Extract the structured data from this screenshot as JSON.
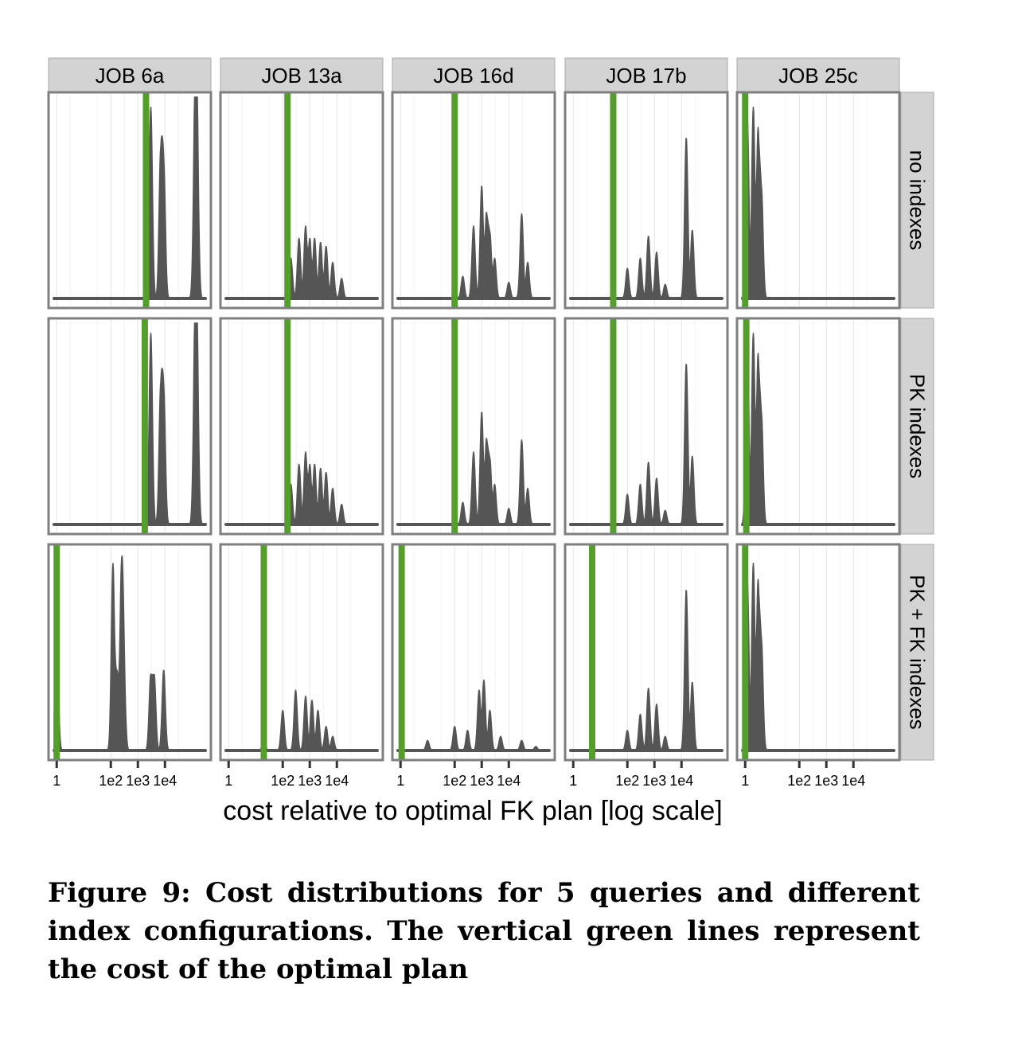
{
  "chart_data": {
    "type": "area",
    "facets": {
      "columns": [
        "JOB 6a",
        "JOB 13a",
        "JOB 16d",
        "JOB 17b",
        "JOB 25c"
      ],
      "rows": [
        "no indexes",
        "PK indexes",
        "PK + FK indexes"
      ]
    },
    "x_scale": "log10",
    "xlim": [
      0.5,
      500000
    ],
    "x_ticks": [
      1,
      100,
      1000,
      10000
    ],
    "x_tick_labels": [
      "1",
      "1e2",
      "1e3",
      "1e4"
    ],
    "xlabel": "cost relative to optimal FK plan  [log scale]",
    "ylabel": "",
    "grid": true,
    "density_color": "#555555",
    "optimal_line_color": "#559e2e",
    "strip_fill": "#d3d3d3",
    "panels": [
      {
        "column": "JOB 6a",
        "row": "no indexes",
        "optimal_plan_cost": 2000,
        "peaks": [
          {
            "x": 3000,
            "height": 0.95
          },
          {
            "x": 7000,
            "height": 0.75
          },
          {
            "x": 9000,
            "height": 0.68
          },
          {
            "x": 130000,
            "height": 0.93
          },
          {
            "x": 150000,
            "height": 0.96
          }
        ]
      },
      {
        "column": "JOB 13a",
        "row": "no indexes",
        "optimal_plan_cost": 150,
        "peaks": [
          {
            "x": 200,
            "height": 0.2
          },
          {
            "x": 400,
            "height": 0.3
          },
          {
            "x": 700,
            "height": 0.36
          },
          {
            "x": 1000,
            "height": 0.3
          },
          {
            "x": 1500,
            "height": 0.3
          },
          {
            "x": 2500,
            "height": 0.28
          },
          {
            "x": 4000,
            "height": 0.26
          },
          {
            "x": 7000,
            "height": 0.18
          },
          {
            "x": 15000,
            "height": 0.1
          }
        ]
      },
      {
        "column": "JOB 16d",
        "row": "no indexes",
        "optimal_plan_cost": 100,
        "peaks": [
          {
            "x": 200,
            "height": 0.11
          },
          {
            "x": 500,
            "height": 0.36
          },
          {
            "x": 1000,
            "height": 0.56
          },
          {
            "x": 1500,
            "height": 0.43
          },
          {
            "x": 2000,
            "height": 0.33
          },
          {
            "x": 3000,
            "height": 0.2
          },
          {
            "x": 10000,
            "height": 0.08
          },
          {
            "x": 30000,
            "height": 0.42
          },
          {
            "x": 50000,
            "height": 0.18
          }
        ]
      },
      {
        "column": "JOB 17b",
        "row": "no indexes",
        "optimal_plan_cost": 30,
        "peaks": [
          {
            "x": 100,
            "height": 0.15
          },
          {
            "x": 300,
            "height": 0.2
          },
          {
            "x": 600,
            "height": 0.31
          },
          {
            "x": 1200,
            "height": 0.23
          },
          {
            "x": 2500,
            "height": 0.07
          },
          {
            "x": 15000,
            "height": 0.8
          },
          {
            "x": 25000,
            "height": 0.34
          }
        ]
      },
      {
        "column": "JOB 25c",
        "row": "no indexes",
        "optimal_plan_cost": 1,
        "peaks": [
          {
            "x": 1.2,
            "height": 0.9
          },
          {
            "x": 2,
            "height": 0.95
          },
          {
            "x": 3,
            "height": 0.85
          },
          {
            "x": 4,
            "height": 0.55
          }
        ]
      },
      {
        "column": "JOB 6a",
        "row": "PK indexes",
        "optimal_plan_cost": 1800,
        "peaks": [
          {
            "x": 3000,
            "height": 0.95
          },
          {
            "x": 7000,
            "height": 0.7
          },
          {
            "x": 9000,
            "height": 0.68
          },
          {
            "x": 130000,
            "height": 0.93
          },
          {
            "x": 150000,
            "height": 0.96
          }
        ]
      },
      {
        "column": "JOB 13a",
        "row": "PK indexes",
        "optimal_plan_cost": 150,
        "peaks": [
          {
            "x": 200,
            "height": 0.2
          },
          {
            "x": 400,
            "height": 0.3
          },
          {
            "x": 700,
            "height": 0.36
          },
          {
            "x": 1000,
            "height": 0.3
          },
          {
            "x": 1500,
            "height": 0.3
          },
          {
            "x": 2500,
            "height": 0.28
          },
          {
            "x": 4000,
            "height": 0.26
          },
          {
            "x": 7000,
            "height": 0.18
          },
          {
            "x": 15000,
            "height": 0.1
          }
        ]
      },
      {
        "column": "JOB 16d",
        "row": "PK indexes",
        "optimal_plan_cost": 100,
        "peaks": [
          {
            "x": 200,
            "height": 0.11
          },
          {
            "x": 500,
            "height": 0.36
          },
          {
            "x": 1000,
            "height": 0.56
          },
          {
            "x": 1500,
            "height": 0.43
          },
          {
            "x": 2000,
            "height": 0.33
          },
          {
            "x": 3000,
            "height": 0.2
          },
          {
            "x": 10000,
            "height": 0.08
          },
          {
            "x": 30000,
            "height": 0.42
          },
          {
            "x": 50000,
            "height": 0.18
          }
        ]
      },
      {
        "column": "JOB 17b",
        "row": "PK indexes",
        "optimal_plan_cost": 30,
        "peaks": [
          {
            "x": 100,
            "height": 0.15
          },
          {
            "x": 300,
            "height": 0.2
          },
          {
            "x": 600,
            "height": 0.31
          },
          {
            "x": 1200,
            "height": 0.23
          },
          {
            "x": 2500,
            "height": 0.07
          },
          {
            "x": 15000,
            "height": 0.8
          },
          {
            "x": 25000,
            "height": 0.34
          }
        ]
      },
      {
        "column": "JOB 25c",
        "row": "PK indexes",
        "optimal_plan_cost": 1.1,
        "peaks": [
          {
            "x": 1.2,
            "height": 0.9
          },
          {
            "x": 2,
            "height": 0.95
          },
          {
            "x": 3,
            "height": 0.85
          },
          {
            "x": 4,
            "height": 0.55
          }
        ]
      },
      {
        "column": "JOB 6a",
        "row": "PK + FK indexes",
        "optimal_plan_cost": 1,
        "peaks": [
          {
            "x": 1,
            "height": 0.6
          },
          {
            "x": 120,
            "height": 0.93
          },
          {
            "x": 170,
            "height": 0.4
          },
          {
            "x": 250,
            "height": 0.94
          },
          {
            "x": 300,
            "height": 0.4
          },
          {
            "x": 3000,
            "height": 0.38
          },
          {
            "x": 4000,
            "height": 0.38
          },
          {
            "x": 9000,
            "height": 0.4
          }
        ]
      },
      {
        "column": "JOB 13a",
        "row": "PK + FK indexes",
        "optimal_plan_cost": 20,
        "peaks": [
          {
            "x": 20,
            "height": 0.05
          },
          {
            "x": 100,
            "height": 0.2
          },
          {
            "x": 300,
            "height": 0.3
          },
          {
            "x": 700,
            "height": 0.27
          },
          {
            "x": 1200,
            "height": 0.25
          },
          {
            "x": 2000,
            "height": 0.2
          },
          {
            "x": 4000,
            "height": 0.12
          },
          {
            "x": 7000,
            "height": 0.07
          }
        ]
      },
      {
        "column": "JOB 16d",
        "row": "PK + FK indexes",
        "optimal_plan_cost": 1.1,
        "peaks": [
          {
            "x": 10,
            "height": 0.05
          },
          {
            "x": 100,
            "height": 0.12
          },
          {
            "x": 300,
            "height": 0.1
          },
          {
            "x": 800,
            "height": 0.3
          },
          {
            "x": 1200,
            "height": 0.35
          },
          {
            "x": 2000,
            "height": 0.2
          },
          {
            "x": 5000,
            "height": 0.07
          },
          {
            "x": 30000,
            "height": 0.05
          },
          {
            "x": 100000,
            "height": 0.02
          }
        ]
      },
      {
        "column": "JOB 17b",
        "row": "PK + FK indexes",
        "optimal_plan_cost": 5,
        "peaks": [
          {
            "x": 5,
            "height": 0.03
          },
          {
            "x": 100,
            "height": 0.1
          },
          {
            "x": 300,
            "height": 0.18
          },
          {
            "x": 600,
            "height": 0.31
          },
          {
            "x": 1200,
            "height": 0.23
          },
          {
            "x": 2500,
            "height": 0.07
          },
          {
            "x": 15000,
            "height": 0.8
          },
          {
            "x": 25000,
            "height": 0.34
          }
        ]
      },
      {
        "column": "JOB 25c",
        "row": "PK + FK indexes",
        "optimal_plan_cost": 1,
        "peaks": [
          {
            "x": 1.2,
            "height": 0.85
          },
          {
            "x": 2,
            "height": 0.93
          },
          {
            "x": 3,
            "height": 0.85
          },
          {
            "x": 4,
            "height": 0.55
          }
        ]
      }
    ]
  },
  "caption": "Figure 9:  Cost distributions for 5 queries and different index configurations.  The vertical green lines represent the cost of the optimal plan"
}
